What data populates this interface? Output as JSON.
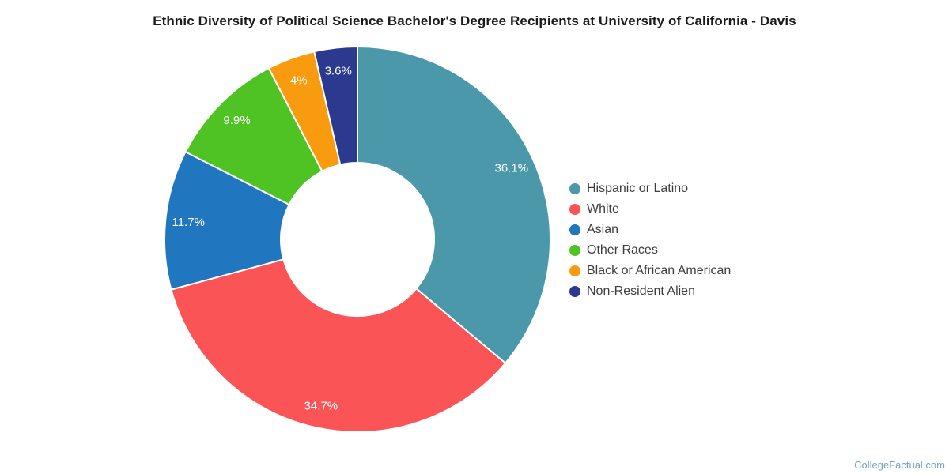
{
  "title": "Ethnic Diversity of Political Science Bachelor's Degree Recipients at University of California - Davis",
  "footer": {
    "brand": "CollegeFactual.com"
  },
  "chart_data": {
    "type": "pie",
    "subtype": "donut",
    "title": "Ethnic Diversity of Political Science Bachelor's Degree Recipients at University of California - Davis",
    "categories": [
      "Hispanic or Latino",
      "White",
      "Asian",
      "Other Races",
      "Black or African American",
      "Non-Resident Alien"
    ],
    "values": [
      36.1,
      34.7,
      11.7,
      9.9,
      4,
      3.6
    ],
    "value_labels": [
      "36.1%",
      "34.7%",
      "11.7%",
      "9.9%",
      "4%",
      "3.6%"
    ],
    "colors": [
      "#4b98ab",
      "#fa5457",
      "#2176c0",
      "#50c324",
      "#f89b0e",
      "#2b3a8e"
    ],
    "slice_label_color": "#ffffff",
    "slice_border_color": "#ffffff",
    "legend_position": "right",
    "start_angle_deg": 0,
    "direction": "clockwise"
  }
}
